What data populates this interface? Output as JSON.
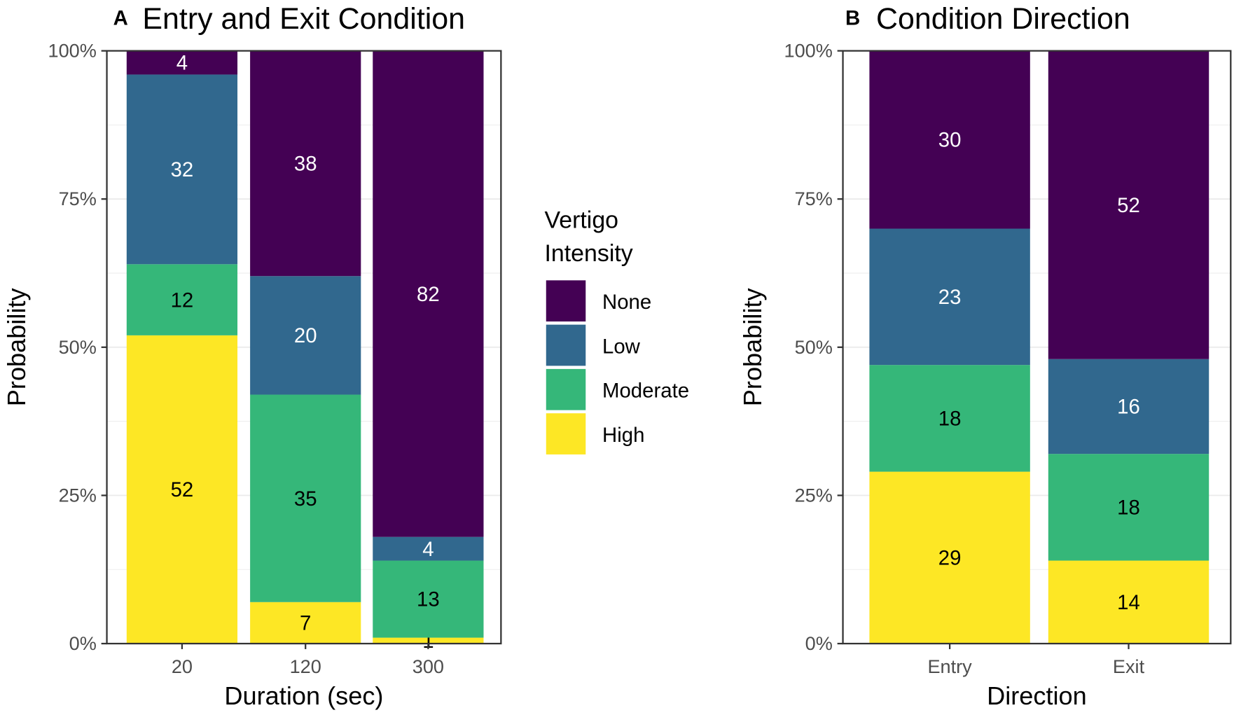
{
  "chart_data": [
    {
      "type": "bar",
      "stacked": true,
      "tag": "A",
      "title": "Entry and Exit Condition",
      "xlabel": "Duration (sec)",
      "ylabel": "Probability",
      "ylim": [
        0,
        100
      ],
      "yticks": [
        "0%",
        "25%",
        "50%",
        "75%",
        "100%"
      ],
      "categories": [
        "20",
        "120",
        "300"
      ],
      "series": [
        {
          "name": "High",
          "values": [
            52,
            7,
            1
          ]
        },
        {
          "name": "Moderate",
          "values": [
            12,
            35,
            13
          ]
        },
        {
          "name": "Low",
          "values": [
            32,
            20,
            4
          ]
        },
        {
          "name": "None",
          "values": [
            4,
            38,
            82
          ]
        }
      ],
      "grid": true
    },
    {
      "type": "bar",
      "stacked": true,
      "tag": "B",
      "title": "Condition Direction",
      "xlabel": "Direction",
      "ylabel": "Probability",
      "ylim": [
        0,
        100
      ],
      "yticks": [
        "0%",
        "25%",
        "50%",
        "75%",
        "100%"
      ],
      "categories": [
        "Entry",
        "Exit"
      ],
      "series": [
        {
          "name": "High",
          "values": [
            29,
            14
          ]
        },
        {
          "name": "Moderate",
          "values": [
            18,
            18
          ]
        },
        {
          "name": "Low",
          "values": [
            23,
            16
          ]
        },
        {
          "name": "None",
          "values": [
            30,
            52
          ]
        }
      ],
      "grid": true
    }
  ],
  "legend": {
    "title_line1": "Vertigo",
    "title_line2": "Intensity",
    "entries": [
      "None",
      "Low",
      "Moderate",
      "High"
    ],
    "placement": "center-between-panels"
  },
  "colors": {
    "None": "#440154",
    "Low": "#31688E",
    "Moderate": "#35B779",
    "High": "#FDE725"
  },
  "label_colors": {
    "None": "#ffffff",
    "Low": "#ffffff",
    "Moderate": "#000000",
    "High": "#000000"
  }
}
